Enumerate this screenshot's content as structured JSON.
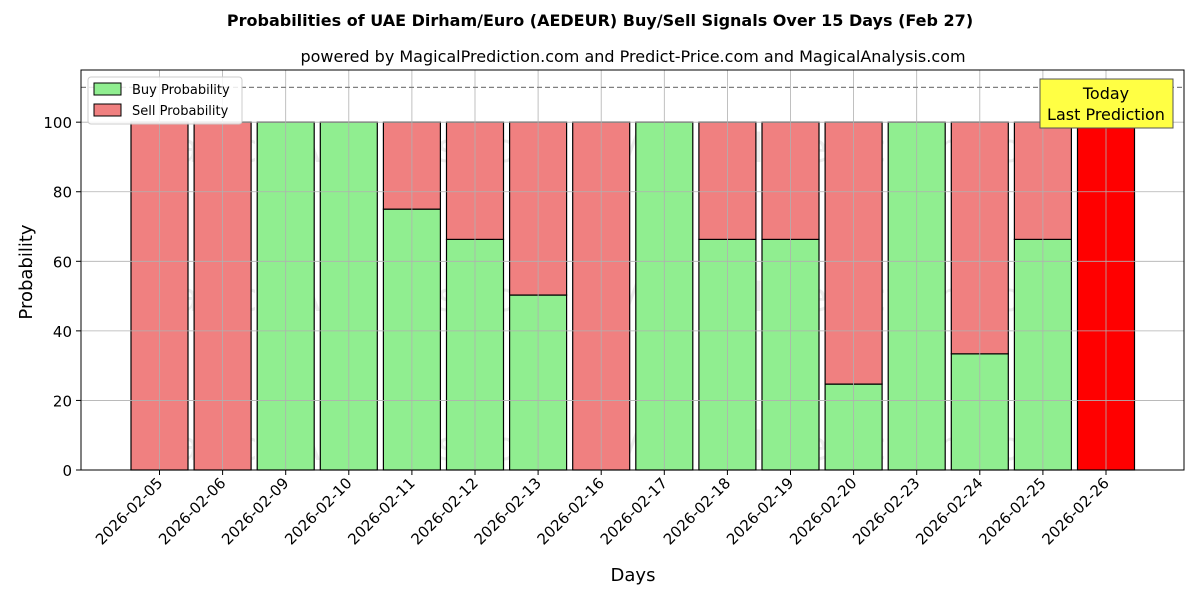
{
  "chart_data": {
    "type": "bar",
    "stacked": true,
    "title": "Probabilities of UAE Dirham/Euro (AEDEUR) Buy/Sell Signals Over 15 Days (Feb 27)",
    "subtitle": "powered by MagicalPrediction.com and Predict-Price.com and MagicalAnalysis.com",
    "xlabel": "Days",
    "ylabel": "Probability",
    "ylim": [
      0,
      115
    ],
    "yticks": [
      0,
      20,
      40,
      60,
      80,
      100
    ],
    "reference_line": 110,
    "grid": true,
    "legend_position": "top-left",
    "categories": [
      "2026-02-05",
      "2026-02-06",
      "2026-02-09",
      "2026-02-10",
      "2026-02-11",
      "2026-02-12",
      "2026-02-13",
      "2026-02-16",
      "2026-02-17",
      "2026-02-18",
      "2026-02-19",
      "2026-02-20",
      "2026-02-23",
      "2026-02-24",
      "2026-02-25",
      "2026-02-26"
    ],
    "series": [
      {
        "name": "Buy Probability",
        "color": "#90ee90",
        "values": [
          0,
          0,
          100,
          100,
          75,
          66.3,
          50.3,
          0,
          100,
          66.3,
          66.3,
          24.7,
          100,
          33.4,
          66.3,
          null
        ]
      },
      {
        "name": "Sell Probability",
        "color": "#f08080",
        "values": [
          100,
          100,
          0,
          0,
          25,
          33.7,
          49.7,
          100,
          0,
          33.7,
          33.7,
          75.3,
          0,
          66.6,
          33.7,
          null
        ]
      }
    ],
    "today_bar": {
      "category": "2026-02-26",
      "value": 100,
      "color": "#ff0000"
    },
    "annotation": {
      "line1": "Today",
      "line2": "Last Prediction",
      "color": "#ffff44"
    },
    "watermarks": [
      "MagicalAnalysis.com",
      "MagicalPrediction.com"
    ]
  }
}
